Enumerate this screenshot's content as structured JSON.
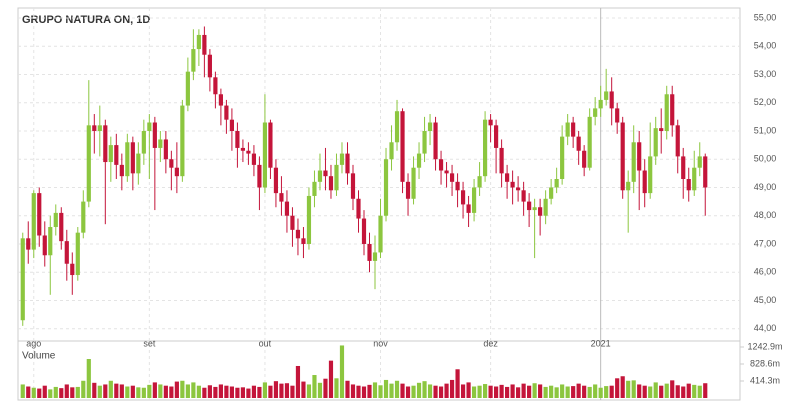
{
  "chart_data": {
    "type": "candlestick",
    "title": "GRUPO NATURA ON, 1D",
    "categories": [
      null,
      null,
      "ago",
      null,
      null,
      null,
      null,
      null,
      null,
      null,
      null,
      null,
      null,
      null,
      null,
      null,
      null,
      null,
      null,
      null,
      null,
      null,
      null,
      "set",
      null,
      null,
      null,
      null,
      null,
      null,
      null,
      null,
      null,
      null,
      null,
      null,
      null,
      null,
      null,
      null,
      null,
      null,
      null,
      null,
      "out",
      null,
      null,
      null,
      null,
      null,
      null,
      null,
      null,
      null,
      null,
      null,
      null,
      null,
      null,
      null,
      null,
      null,
      null,
      null,
      null,
      "nov",
      null,
      null,
      null,
      null,
      null,
      null,
      null,
      null,
      null,
      null,
      null,
      null,
      null,
      null,
      null,
      null,
      null,
      null,
      null,
      "dez",
      null,
      null,
      null,
      null,
      null,
      null,
      null,
      null,
      null,
      null,
      null,
      null,
      null,
      null,
      null,
      null,
      null,
      null,
      null,
      "2021",
      null,
      null,
      null,
      null,
      null,
      null,
      null,
      null,
      null,
      null,
      null,
      null,
      null,
      null,
      null,
      null,
      null,
      null,
      null
    ],
    "open": [
      44.3,
      47.2,
      46.8,
      48.8,
      47.3,
      46.6,
      47.6,
      48.1,
      47.1,
      46.3,
      45.9,
      47.4,
      48.5,
      51.2,
      51.0,
      51.2,
      49.9,
      50.5,
      49.8,
      49.4,
      50.6,
      49.5,
      50.2,
      51.0,
      51.3,
      50.4,
      50.7,
      50.0,
      49.7,
      49.4,
      51.9,
      53.1,
      53.9,
      54.4,
      53.7,
      52.9,
      52.3,
      51.9,
      51.4,
      51.0,
      50.4,
      50.3,
      50.2,
      49.8,
      49.0,
      51.3,
      49.7,
      48.8,
      48.5,
      48.0,
      47.5,
      47.2,
      47.0,
      48.7,
      49.2,
      49.6,
      49.4,
      48.9,
      49.8,
      50.2,
      49.5,
      48.6,
      47.9,
      47.0,
      46.4,
      46.7,
      48.0,
      50.0,
      50.6,
      51.7,
      49.2,
      48.6,
      49.7,
      50.2,
      51.0,
      51.3,
      50.0,
      49.6,
      49.5,
      49.2,
      48.9,
      48.4,
      48.1,
      49.0,
      49.4,
      51.4,
      51.2,
      50.4,
      49.5,
      49.2,
      49.0,
      48.9,
      48.5,
      48.2,
      48.3,
      48.0,
      48.6,
      49.0,
      49.3,
      50.8,
      51.3,
      50.8,
      50.3,
      49.7,
      51.5,
      51.8,
      52.1,
      52.4,
      51.8,
      51.3,
      48.9,
      49.2,
      50.6,
      49.6,
      48.8,
      50.1,
      51.1,
      51.0,
      52.3,
      51.2,
      50.1,
      49.3,
      48.9,
      49.7,
      50.1
    ],
    "high": [
      47.4,
      47.8,
      48.9,
      49.0,
      47.8,
      48.0,
      48.4,
      48.3,
      47.5,
      46.7,
      47.6,
      48.9,
      52.8,
      51.6,
      51.9,
      51.4,
      50.8,
      50.9,
      50.2,
      50.9,
      50.8,
      50.6,
      51.4,
      51.6,
      51.5,
      51.0,
      51.0,
      50.3,
      50.6,
      52.1,
      53.6,
      54.6,
      54.6,
      54.7,
      53.9,
      53.1,
      52.5,
      52.1,
      51.8,
      51.3,
      50.7,
      50.6,
      50.5,
      50.1,
      52.3,
      51.4,
      50.0,
      49.4,
      48.9,
      48.3,
      47.9,
      47.6,
      49.0,
      49.6,
      50.2,
      50.4,
      49.8,
      50.2,
      50.6,
      50.6,
      49.8,
      48.9,
      48.2,
      47.4,
      47.3,
      48.6,
      50.4,
      51.2,
      52.1,
      51.8,
      49.5,
      50.1,
      50.6,
      51.5,
      51.6,
      51.5,
      50.3,
      49.9,
      49.8,
      49.5,
      49.2,
      48.7,
      49.3,
      49.9,
      51.7,
      51.6,
      51.4,
      50.7,
      49.8,
      49.6,
      49.4,
      49.2,
      48.8,
      48.6,
      48.6,
      48.9,
      49.3,
      49.7,
      51.2,
      51.6,
      51.5,
      51.0,
      50.5,
      51.8,
      52.2,
      52.6,
      53.2,
      52.9,
      52.0,
      51.5,
      49.6,
      51.2,
      51.0,
      50.0,
      51.3,
      51.5,
      51.8,
      52.6,
      52.6,
      51.4,
      50.4,
      49.7,
      50.3,
      50.6,
      50.2
    ],
    "low": [
      44.1,
      46.3,
      46.5,
      46.9,
      46.2,
      45.2,
      47.3,
      46.8,
      45.7,
      45.2,
      45.7,
      47.2,
      48.3,
      50.2,
      50.1,
      47.7,
      49.2,
      49.3,
      48.9,
      49.2,
      48.9,
      49.1,
      49.8,
      49.3,
      48.2,
      49.9,
      49.5,
      48.9,
      48.8,
      49.2,
      51.7,
      52.8,
      53.3,
      52.9,
      52.4,
      51.8,
      51.2,
      50.9,
      50.3,
      49.7,
      49.9,
      49.8,
      49.4,
      48.2,
      48.8,
      49.3,
      48.3,
      48.0,
      47.4,
      46.9,
      46.6,
      46.5,
      46.8,
      48.3,
      48.9,
      48.9,
      48.6,
      48.7,
      49.5,
      49.1,
      48.2,
      47.4,
      46.6,
      46.0,
      45.4,
      46.5,
      47.8,
      49.6,
      50.3,
      48.8,
      48.0,
      48.4,
      49.3,
      49.9,
      50.5,
      49.6,
      49.1,
      49.0,
      48.7,
      48.3,
      47.9,
      47.6,
      47.8,
      48.7,
      49.2,
      50.6,
      49.5,
      49.0,
      48.6,
      48.4,
      48.5,
      48.0,
      47.6,
      46.5,
      47.3,
      47.7,
      48.4,
      48.8,
      49.1,
      50.5,
      50.4,
      49.8,
      49.4,
      49.6,
      51.2,
      51.5,
      51.9,
      51.2,
      50.9,
      48.6,
      47.4,
      48.8,
      48.2,
      48.3,
      48.6,
      49.8,
      50.2,
      50.7,
      50.8,
      49.5,
      48.6,
      48.5,
      48.7,
      49.4,
      48.0
    ],
    "close": [
      47.2,
      46.8,
      48.8,
      47.3,
      46.6,
      47.6,
      48.1,
      47.1,
      46.3,
      45.9,
      47.4,
      48.5,
      51.2,
      51.0,
      51.2,
      49.9,
      50.5,
      49.8,
      49.4,
      50.6,
      49.5,
      50.2,
      51.0,
      51.3,
      50.4,
      50.7,
      50.0,
      49.7,
      49.4,
      51.9,
      53.1,
      53.9,
      54.4,
      53.7,
      52.9,
      52.3,
      51.9,
      51.4,
      51.0,
      50.4,
      50.3,
      50.2,
      49.8,
      49.0,
      51.3,
      49.7,
      48.8,
      48.5,
      48.0,
      47.5,
      47.2,
      47.0,
      48.7,
      49.2,
      49.6,
      49.4,
      48.9,
      49.8,
      50.2,
      49.5,
      48.6,
      47.9,
      47.0,
      46.4,
      46.7,
      48.0,
      50.0,
      50.6,
      51.7,
      49.2,
      48.6,
      49.7,
      50.2,
      51.0,
      51.3,
      50.0,
      49.6,
      49.5,
      49.2,
      48.9,
      48.4,
      48.1,
      49.0,
      49.4,
      51.4,
      51.2,
      50.4,
      49.5,
      49.2,
      49.0,
      48.9,
      48.5,
      48.2,
      48.3,
      48.0,
      48.6,
      49.0,
      49.3,
      50.8,
      51.3,
      50.8,
      50.3,
      49.7,
      51.5,
      51.8,
      52.1,
      52.4,
      51.8,
      51.3,
      48.9,
      49.2,
      50.6,
      49.6,
      48.8,
      50.1,
      51.1,
      51.0,
      52.3,
      51.2,
      50.1,
      49.3,
      48.9,
      49.7,
      50.1,
      49.0
    ],
    "volume": [
      330,
      280,
      250,
      230,
      300,
      210,
      270,
      240,
      330,
      260,
      270,
      420,
      950,
      370,
      300,
      330,
      420,
      350,
      330,
      280,
      300,
      260,
      250,
      320,
      380,
      330,
      300,
      280,
      400,
      420,
      330,
      380,
      300,
      250,
      310,
      270,
      330,
      300,
      280,
      250,
      260,
      230,
      300,
      270,
      380,
      300,
      410,
      350,
      360,
      300,
      780,
      400,
      330,
      560,
      370,
      470,
      910,
      480,
      1280,
      420,
      330,
      300,
      280,
      320,
      380,
      310,
      440,
      350,
      420,
      350,
      280,
      300,
      370,
      410,
      330,
      300,
      280,
      350,
      440,
      700,
      330,
      380,
      280,
      300,
      340,
      300,
      280,
      320,
      270,
      330,
      260,
      350,
      300,
      360,
      330,
      270,
      300,
      260,
      330,
      280,
      290,
      350,
      300,
      270,
      330,
      250,
      290,
      300,
      480,
      530,
      420,
      430,
      330,
      300,
      280,
      380,
      300,
      350,
      430,
      310,
      280,
      350,
      320,
      300,
      360
    ],
    "volume_label": "Volume",
    "up_color": "#8cc63f",
    "down_color": "#c4153a",
    "ylim": [
      43.6,
      55.0
    ],
    "yticks": [
      {
        "value": 44,
        "label": "44,00"
      },
      {
        "value": 45,
        "label": "45,00"
      },
      {
        "value": 46,
        "label": "46,00"
      },
      {
        "value": 47,
        "label": "47,00"
      },
      {
        "value": 48,
        "label": "48,00"
      },
      {
        "value": 49,
        "label": "49,00"
      },
      {
        "value": 50,
        "label": "50,00"
      },
      {
        "value": 51,
        "label": "51,00"
      },
      {
        "value": 52,
        "label": "52,00"
      },
      {
        "value": 53,
        "label": "53,00"
      },
      {
        "value": 54,
        "label": "54,00"
      },
      {
        "value": 55,
        "label": "55,00"
      }
    ],
    "y2lim": [
      0,
      1340
    ],
    "y2ticks": [
      {
        "value": 414.3,
        "label": "414.3m"
      },
      {
        "value": 828.6,
        "label": "828.6m"
      },
      {
        "value": 1242.9,
        "label": "1242.9m"
      }
    ],
    "grid": true
  }
}
